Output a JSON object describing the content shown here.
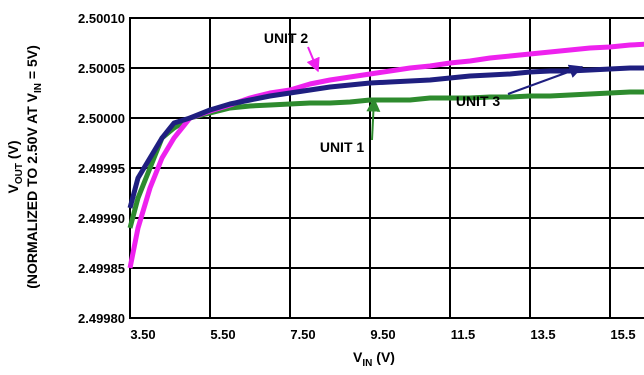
{
  "chart_data": {
    "type": "line",
    "xlabel": {
      "main": "V",
      "sub": "IN",
      "tail": " (V)"
    },
    "ylabel": {
      "line1": {
        "main": "V",
        "sub": "OUT",
        "tail": " (V)"
      },
      "line2": {
        "pre": "(NORMALIZED TO 2.50V AT V",
        "sub": "IN",
        "tail": " = 5V)"
      }
    },
    "xlim": [
      3.5,
      16.5
    ],
    "ylim": [
      2.4998,
      2.5001
    ],
    "x_ticks": [
      3.5,
      5.5,
      7.5,
      9.5,
      11.5,
      13.5,
      15.5
    ],
    "x_tick_labels": [
      "3.50",
      "5.50",
      "7.50",
      "9.50",
      "11.5",
      "13.5",
      "15.5"
    ],
    "y_ticks": [
      2.4998,
      2.49985,
      2.4999,
      2.49995,
      2.5,
      2.50005,
      2.5001
    ],
    "y_tick_labels": [
      "2.49980",
      "2.49985",
      "2.49990",
      "2.49995",
      "2.50000",
      "2.50005",
      "2.50010"
    ],
    "grid": true,
    "legend": "none",
    "series": [
      {
        "name": "UNIT 1",
        "color": "#2e8b2e",
        "points": [
          [
            3.5,
            2.49989
          ],
          [
            3.7,
            2.49992
          ],
          [
            4.0,
            2.49995
          ],
          [
            4.3,
            2.49998
          ],
          [
            4.6,
            2.49999
          ],
          [
            5.0,
            2.5
          ],
          [
            5.5,
            2.500005
          ],
          [
            6.0,
            2.50001
          ],
          [
            6.5,
            2.500012
          ],
          [
            7.0,
            2.500013
          ],
          [
            7.5,
            2.500014
          ],
          [
            8.0,
            2.500015
          ],
          [
            8.5,
            2.500015
          ],
          [
            9.0,
            2.500016
          ],
          [
            9.5,
            2.500018
          ],
          [
            10.0,
            2.500018
          ],
          [
            10.5,
            2.500018
          ],
          [
            11.0,
            2.50002
          ],
          [
            11.5,
            2.50002
          ],
          [
            12.0,
            2.50002
          ],
          [
            12.5,
            2.500021
          ],
          [
            13.0,
            2.500021
          ],
          [
            13.5,
            2.500022
          ],
          [
            14.0,
            2.500022
          ],
          [
            14.5,
            2.500023
          ],
          [
            15.0,
            2.500024
          ],
          [
            15.5,
            2.500025
          ],
          [
            16.0,
            2.500026
          ],
          [
            16.5,
            2.500026
          ]
        ]
      },
      {
        "name": "UNIT 2",
        "color": "#ee22ee",
        "points": [
          [
            3.5,
            2.49985
          ],
          [
            3.7,
            2.49989
          ],
          [
            4.0,
            2.49993
          ],
          [
            4.3,
            2.49996
          ],
          [
            4.6,
            2.49998
          ],
          [
            5.0,
            2.5
          ],
          [
            5.5,
            2.500007
          ],
          [
            6.0,
            2.500013
          ],
          [
            6.5,
            2.50002
          ],
          [
            7.0,
            2.500025
          ],
          [
            7.5,
            2.500028
          ],
          [
            8.0,
            2.500034
          ],
          [
            8.5,
            2.500038
          ],
          [
            9.0,
            2.500041
          ],
          [
            9.5,
            2.500044
          ],
          [
            10.0,
            2.500047
          ],
          [
            10.5,
            2.50005
          ],
          [
            11.0,
            2.500052
          ],
          [
            11.5,
            2.500055
          ],
          [
            12.0,
            2.500057
          ],
          [
            12.5,
            2.50006
          ],
          [
            13.0,
            2.500062
          ],
          [
            13.5,
            2.500064
          ],
          [
            14.0,
            2.500066
          ],
          [
            14.5,
            2.500068
          ],
          [
            15.0,
            2.50007
          ],
          [
            15.5,
            2.500071
          ],
          [
            16.0,
            2.500073
          ],
          [
            16.5,
            2.500074
          ]
        ]
      },
      {
        "name": "UNIT 3",
        "color": "#1f1f80",
        "points": [
          [
            3.5,
            2.49991
          ],
          [
            3.7,
            2.49994
          ],
          [
            4.0,
            2.49996
          ],
          [
            4.3,
            2.49998
          ],
          [
            4.6,
            2.499995
          ],
          [
            5.0,
            2.5
          ],
          [
            5.5,
            2.500008
          ],
          [
            6.0,
            2.500014
          ],
          [
            6.5,
            2.500018
          ],
          [
            7.0,
            2.500022
          ],
          [
            7.5,
            2.500025
          ],
          [
            8.0,
            2.500028
          ],
          [
            8.5,
            2.500031
          ],
          [
            9.0,
            2.500033
          ],
          [
            9.5,
            2.500035
          ],
          [
            10.0,
            2.500036
          ],
          [
            10.5,
            2.500037
          ],
          [
            11.0,
            2.500038
          ],
          [
            11.5,
            2.50004
          ],
          [
            12.0,
            2.500042
          ],
          [
            12.5,
            2.500043
          ],
          [
            13.0,
            2.500044
          ],
          [
            13.5,
            2.500046
          ],
          [
            14.0,
            2.500047
          ],
          [
            14.5,
            2.500047
          ],
          [
            15.0,
            2.500048
          ],
          [
            15.5,
            2.500049
          ],
          [
            16.0,
            2.50005
          ],
          [
            16.5,
            2.50005
          ]
        ]
      }
    ],
    "annotations": [
      {
        "text": "UNIT 2",
        "text_at": [
          7.4,
          2.500075
        ],
        "arrow_to": [
          8.2,
          2.500047
        ],
        "series": 1
      },
      {
        "text": "UNIT 1",
        "text_at": [
          8.8,
          2.499966
        ],
        "arrow_to": [
          9.6,
          2.500019
        ],
        "series": 0
      },
      {
        "text": "UNIT 3",
        "text_at": [
          12.2,
          2.500012
        ],
        "arrow_to": [
          14.8,
          2.500051
        ],
        "series": 2
      }
    ]
  }
}
